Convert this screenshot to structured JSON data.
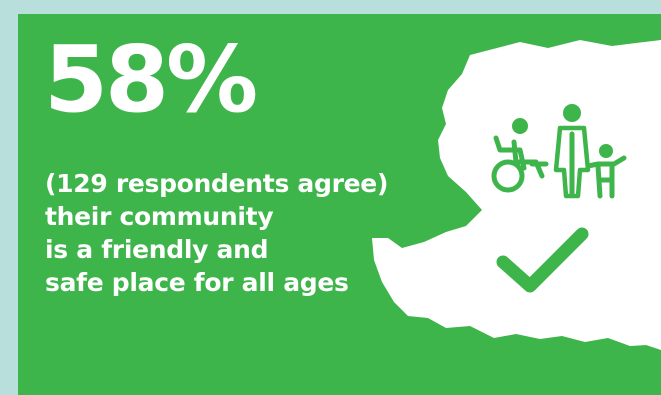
{
  "headline": {
    "percentage": "58%"
  },
  "caption": {
    "lines": [
      "(129 respondents agree)",
      "their community",
      "is a friendly and",
      "safe place for all ages"
    ]
  },
  "icons": {
    "map": "region-map-silhouette",
    "people": "wheelchair-user-adult-child-icon",
    "check": "checkmark-icon"
  },
  "colors": {
    "background": "#b9dfdc",
    "panel": "#3eb54b",
    "text": "#ffffff"
  }
}
